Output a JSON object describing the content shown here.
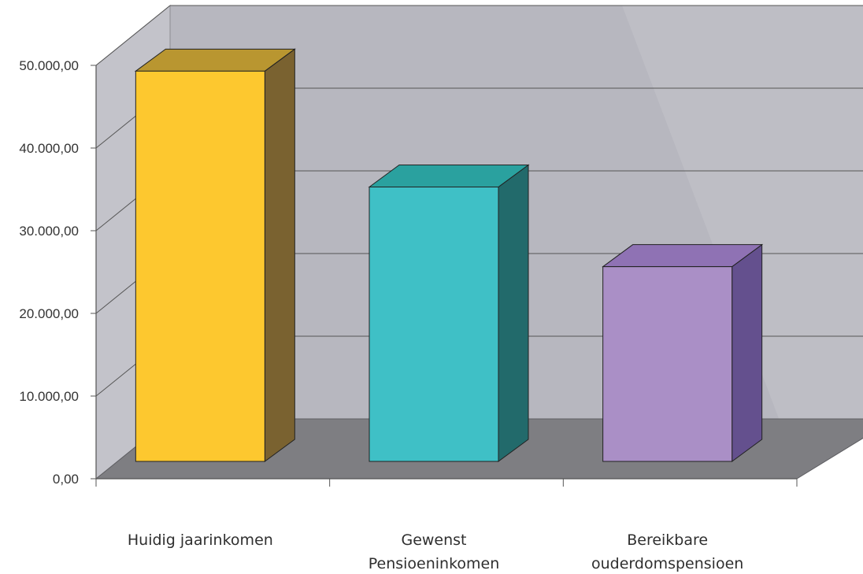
{
  "chart_data": {
    "type": "bar",
    "style": "3d-column",
    "categories": [
      "Huidig jaarinkomen",
      "Gewenst Pensioeninkomen",
      "Bereikbare ouderdomspensioen"
    ],
    "category_lines": [
      [
        "Huidig jaarinkomen"
      ],
      [
        "Gewenst",
        "Pensioeninkomen"
      ],
      [
        "Bereikbare",
        "ouderdomspensioen"
      ]
    ],
    "values": [
      48500,
      34100,
      24200
    ],
    "ylim": [
      0,
      50000
    ],
    "y_ticks": [
      0,
      10000,
      20000,
      30000,
      40000,
      50000
    ],
    "y_tick_labels": [
      "0,00",
      "10.000,00",
      "20.000,00",
      "30.000,00",
      "40.000,00",
      "50.000,00"
    ],
    "grid": true,
    "legend": "none",
    "title": "",
    "xlabel": "",
    "ylabel": "",
    "colors": {
      "bar_fronts": [
        "#fdc82f",
        "#3fc0c6",
        "#aa8fc6"
      ],
      "bar_tops": [
        "#b99630",
        "#2aa19f",
        "#8f72b4"
      ],
      "bar_sides": [
        "#7a6230",
        "#226a6b",
        "#64508e"
      ],
      "back_wall": "#b7b7bf",
      "side_wall": "#c3c3ca",
      "floor": "#7e7e82",
      "gridline": "#555555",
      "axis": "#555555",
      "text": "#333333"
    }
  }
}
